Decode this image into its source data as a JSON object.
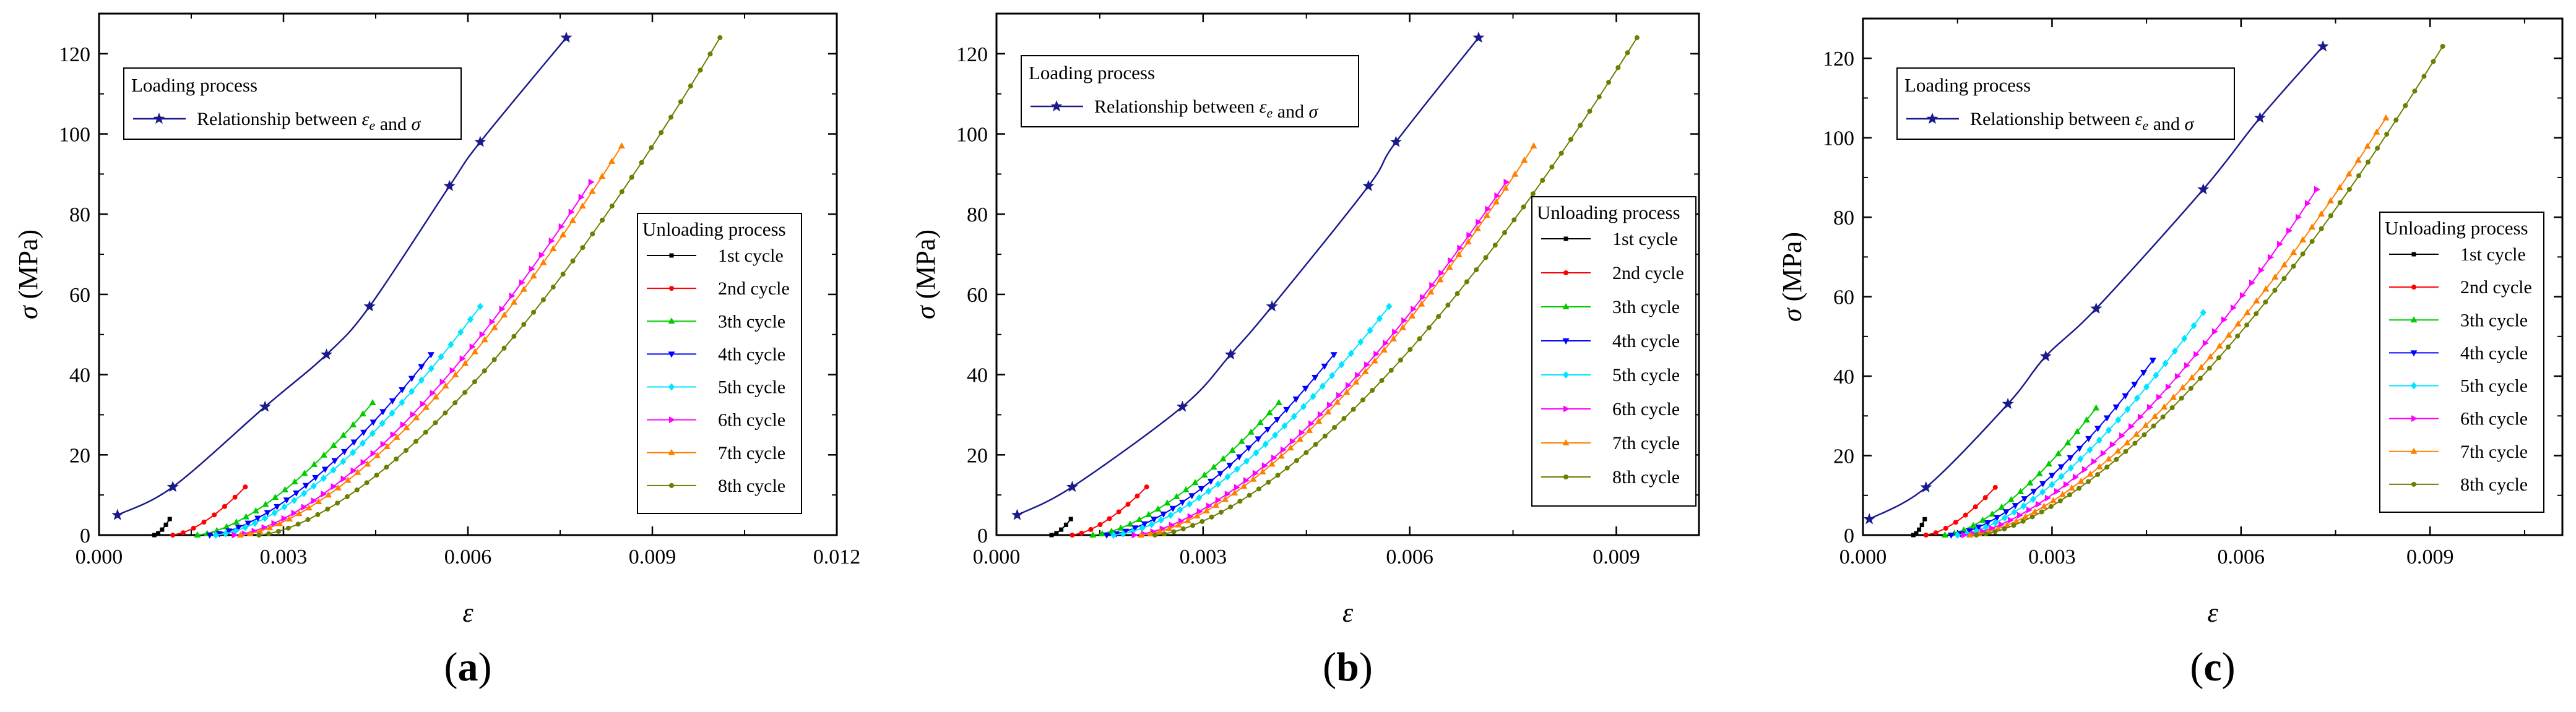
{
  "figure": {
    "panel_labels": [
      "(a)",
      "(b)",
      "(c)"
    ]
  },
  "legend_text": {
    "loading_title": "Loading process",
    "loading_entry": "Relationship between ε_e and σ",
    "unloading_title": "Unloading process"
  },
  "colors": {
    "loading": "#1a1a8c",
    "cycles": [
      "#000000",
      "#ff0000",
      "#00cc00",
      "#0000ff",
      "#00e5ff",
      "#ff00ff",
      "#ff8000",
      "#6b7f00"
    ]
  },
  "chart_data": [
    {
      "type": "line",
      "panel": "(a)",
      "xlabel": "ε",
      "ylabel": "σ (MPa)",
      "xlim": [
        0,
        0.012
      ],
      "ylim": [
        0,
        130
      ],
      "xticks": [
        "0.000",
        "0.003",
        "0.006",
        "0.009",
        "0.012"
      ],
      "yticks": [
        "0",
        "20",
        "40",
        "60",
        "80",
        "100",
        "120"
      ],
      "loading": {
        "name": "Relationship between ε_e and σ",
        "x": [
          0.0003,
          0.0012,
          0.0027,
          0.0037,
          0.0044,
          0.0057,
          0.0062,
          0.0076
        ],
        "y": [
          5,
          12,
          32,
          45,
          57,
          87,
          98,
          124
        ]
      },
      "unloading": [
        {
          "name": "1st cycle",
          "x0": 0.0009,
          "x1": 0.00115,
          "ymax": 4
        },
        {
          "name": "2nd cycle",
          "x0": 0.0012,
          "x1": 0.00238,
          "ymax": 12
        },
        {
          "name": "3th cycle",
          "x0": 0.0016,
          "x1": 0.00445,
          "ymax": 33
        },
        {
          "name": "4th cycle",
          "x0": 0.0018,
          "x1": 0.0054,
          "ymax": 45
        },
        {
          "name": "5th cycle",
          "x0": 0.0019,
          "x1": 0.0062,
          "ymax": 57
        },
        {
          "name": "6th cycle",
          "x0": 0.0022,
          "x1": 0.008,
          "ymax": 88
        },
        {
          "name": "7th cycle",
          "x0": 0.0023,
          "x1": 0.0085,
          "ymax": 97
        },
        {
          "name": "8th cycle",
          "x0": 0.0026,
          "x1": 0.0101,
          "ymax": 124
        }
      ]
    },
    {
      "type": "line",
      "panel": "(b)",
      "xlabel": "ε",
      "ylabel": "σ (MPa)",
      "xlim": [
        0,
        0.0102
      ],
      "ylim": [
        0,
        130
      ],
      "xticks": [
        "0.000",
        "0.003",
        "0.006",
        "0.009"
      ],
      "yticks": [
        "0",
        "20",
        "40",
        "60",
        "80",
        "100",
        "120"
      ],
      "loading": {
        "name": "Relationship between ε_e and σ",
        "x": [
          0.0003,
          0.0011,
          0.0027,
          0.0034,
          0.004,
          0.0054,
          0.0058,
          0.007
        ],
        "y": [
          5,
          12,
          32,
          45,
          57,
          87,
          98,
          124
        ]
      },
      "unloading": [
        {
          "name": "1st cycle",
          "x0": 0.0008,
          "x1": 0.00108,
          "ymax": 4
        },
        {
          "name": "2nd cycle",
          "x0": 0.0011,
          "x1": 0.00218,
          "ymax": 12
        },
        {
          "name": "3th cycle",
          "x0": 0.0014,
          "x1": 0.0041,
          "ymax": 33
        },
        {
          "name": "4th cycle",
          "x0": 0.0016,
          "x1": 0.0049,
          "ymax": 45
        },
        {
          "name": "5th cycle",
          "x0": 0.0017,
          "x1": 0.0057,
          "ymax": 57
        },
        {
          "name": "6th cycle",
          "x0": 0.002,
          "x1": 0.0074,
          "ymax": 88
        },
        {
          "name": "7th cycle",
          "x0": 0.0021,
          "x1": 0.0078,
          "ymax": 97
        },
        {
          "name": "8th cycle",
          "x0": 0.0023,
          "x1": 0.0093,
          "ymax": 124
        }
      ]
    },
    {
      "type": "line",
      "panel": "(c)",
      "xlabel": "ε",
      "ylabel": "σ (MPa)",
      "xlim": [
        0,
        0.0111
      ],
      "ylim": [
        0,
        130
      ],
      "xticks": [
        "0.000",
        "0.003",
        "0.006",
        "0.009"
      ],
      "yticks": [
        "0",
        "20",
        "40",
        "60",
        "80",
        "100",
        "120"
      ],
      "loading": {
        "name": "Relationship between ε_e and σ",
        "x": [
          0.0001,
          0.001,
          0.0023,
          0.0029,
          0.0037,
          0.0054,
          0.0063,
          0.0073
        ],
        "y": [
          4,
          12,
          33,
          45,
          57,
          87,
          105,
          123
        ]
      },
      "unloading": [
        {
          "name": "1st cycle",
          "x0": 0.0008,
          "x1": 0.00098,
          "ymax": 4
        },
        {
          "name": "2nd cycle",
          "x0": 0.001,
          "x1": 0.0021,
          "ymax": 12
        },
        {
          "name": "3th cycle",
          "x0": 0.0013,
          "x1": 0.0037,
          "ymax": 32
        },
        {
          "name": "4th cycle",
          "x0": 0.0014,
          "x1": 0.0046,
          "ymax": 44
        },
        {
          "name": "5th cycle",
          "x0": 0.0015,
          "x1": 0.0054,
          "ymax": 56
        },
        {
          "name": "6th cycle",
          "x0": 0.0016,
          "x1": 0.0072,
          "ymax": 87
        },
        {
          "name": "7th cycle",
          "x0": 0.0017,
          "x1": 0.0083,
          "ymax": 105
        },
        {
          "name": "8th cycle",
          "x0": 0.0018,
          "x1": 0.0092,
          "ymax": 123
        }
      ]
    }
  ]
}
